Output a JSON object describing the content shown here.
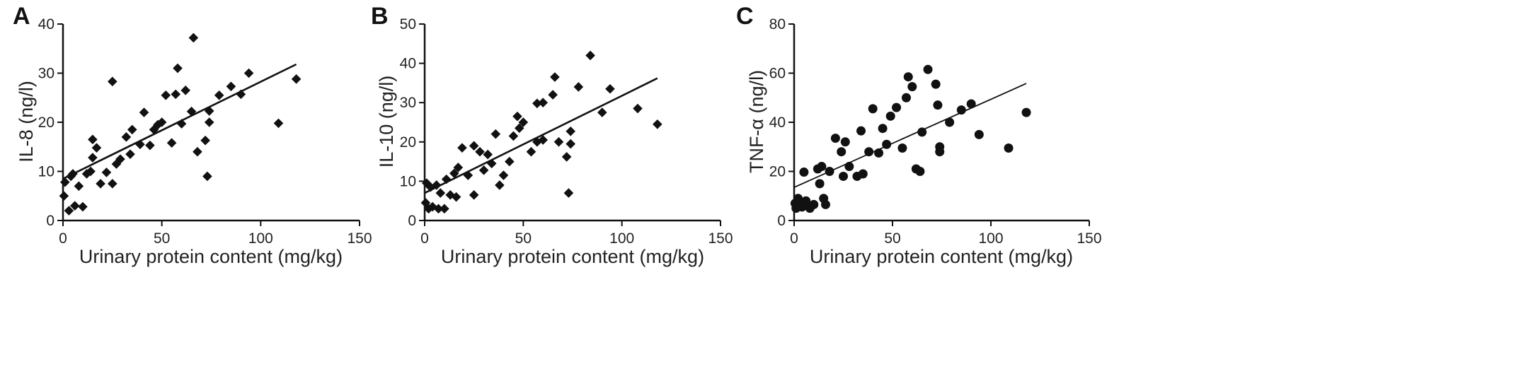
{
  "chart_data": [
    {
      "panel": "A",
      "type": "scatter",
      "xlabel": "Urinary protein content (mg/kg)",
      "ylabel": "IL-8 (ng/l)",
      "xlim": [
        0,
        150
      ],
      "ylim": [
        0,
        40
      ],
      "xticks": [
        0,
        50,
        100,
        150
      ],
      "yticks": [
        0,
        10,
        20,
        30,
        40
      ],
      "grid": false,
      "points": [
        {
          "x": 0.5,
          "y": 5.0
        },
        {
          "x": 1,
          "y": 7.8
        },
        {
          "x": 3,
          "y": 2.0
        },
        {
          "x": 4,
          "y": 9.0
        },
        {
          "x": 5,
          "y": 9.5
        },
        {
          "x": 6,
          "y": 3.0
        },
        {
          "x": 8,
          "y": 7.0
        },
        {
          "x": 10,
          "y": 2.8
        },
        {
          "x": 12,
          "y": 9.5
        },
        {
          "x": 14,
          "y": 10.0
        },
        {
          "x": 15,
          "y": 12.8
        },
        {
          "x": 15,
          "y": 16.5
        },
        {
          "x": 17,
          "y": 14.8
        },
        {
          "x": 19,
          "y": 7.5
        },
        {
          "x": 22,
          "y": 9.8
        },
        {
          "x": 25,
          "y": 7.5
        },
        {
          "x": 25,
          "y": 28.3
        },
        {
          "x": 27,
          "y": 11.5
        },
        {
          "x": 29,
          "y": 12.5
        },
        {
          "x": 32,
          "y": 17.0
        },
        {
          "x": 34,
          "y": 13.5
        },
        {
          "x": 35,
          "y": 18.5
        },
        {
          "x": 39,
          "y": 15.5
        },
        {
          "x": 41,
          "y": 22.0
        },
        {
          "x": 44,
          "y": 15.3
        },
        {
          "x": 46,
          "y": 18.5
        },
        {
          "x": 48,
          "y": 19.5
        },
        {
          "x": 50,
          "y": 20.0
        },
        {
          "x": 52,
          "y": 25.5
        },
        {
          "x": 55,
          "y": 15.8
        },
        {
          "x": 57,
          "y": 25.7
        },
        {
          "x": 58,
          "y": 31.0
        },
        {
          "x": 60,
          "y": 19.7
        },
        {
          "x": 62,
          "y": 26.5
        },
        {
          "x": 65,
          "y": 22.2
        },
        {
          "x": 66,
          "y": 37.2
        },
        {
          "x": 68,
          "y": 14.0
        },
        {
          "x": 72,
          "y": 16.3
        },
        {
          "x": 73,
          "y": 9.0
        },
        {
          "x": 74,
          "y": 20.0
        },
        {
          "x": 74,
          "y": 22.3
        },
        {
          "x": 79,
          "y": 25.5
        },
        {
          "x": 85,
          "y": 27.3
        },
        {
          "x": 90,
          "y": 25.7
        },
        {
          "x": 94,
          "y": 30.0
        },
        {
          "x": 109,
          "y": 19.8
        },
        {
          "x": 118,
          "y": 28.8
        }
      ],
      "trendline": {
        "x": [
          0,
          118
        ],
        "y": [
          8.5,
          31.8
        ]
      }
    },
    {
      "panel": "B",
      "type": "scatter",
      "xlabel": "Urinary protein content (mg/kg)",
      "ylabel": "IL-10 (ng/l)",
      "xlim": [
        0,
        150
      ],
      "ylim": [
        0,
        50
      ],
      "xticks": [
        0,
        50,
        100,
        150
      ],
      "yticks": [
        0,
        10,
        20,
        30,
        40,
        50
      ],
      "grid": false,
      "points": [
        {
          "x": 0.5,
          "y": 4.5
        },
        {
          "x": 1,
          "y": 9.5
        },
        {
          "x": 2,
          "y": 3.0
        },
        {
          "x": 3,
          "y": 8.5
        },
        {
          "x": 4,
          "y": 3.5
        },
        {
          "x": 6,
          "y": 9.0
        },
        {
          "x": 7,
          "y": 3.0
        },
        {
          "x": 8,
          "y": 7.0
        },
        {
          "x": 10,
          "y": 3.0
        },
        {
          "x": 11,
          "y": 10.5
        },
        {
          "x": 13,
          "y": 6.5
        },
        {
          "x": 15,
          "y": 12.0
        },
        {
          "x": 16,
          "y": 6.0
        },
        {
          "x": 17,
          "y": 13.5
        },
        {
          "x": 19,
          "y": 18.5
        },
        {
          "x": 22,
          "y": 11.5
        },
        {
          "x": 25,
          "y": 19.0
        },
        {
          "x": 25,
          "y": 6.5
        },
        {
          "x": 28,
          "y": 17.5
        },
        {
          "x": 30,
          "y": 12.8
        },
        {
          "x": 32,
          "y": 16.8
        },
        {
          "x": 34,
          "y": 14.5
        },
        {
          "x": 36,
          "y": 22.0
        },
        {
          "x": 38,
          "y": 9.0
        },
        {
          "x": 40,
          "y": 11.5
        },
        {
          "x": 43,
          "y": 15.0
        },
        {
          "x": 45,
          "y": 21.5
        },
        {
          "x": 47,
          "y": 26.5
        },
        {
          "x": 48,
          "y": 23.5
        },
        {
          "x": 50,
          "y": 25.0
        },
        {
          "x": 54,
          "y": 17.5
        },
        {
          "x": 57,
          "y": 29.8
        },
        {
          "x": 57,
          "y": 20.0
        },
        {
          "x": 60,
          "y": 30.0
        },
        {
          "x": 60,
          "y": 20.5
        },
        {
          "x": 65,
          "y": 32.0
        },
        {
          "x": 66,
          "y": 36.5
        },
        {
          "x": 68,
          "y": 20.0
        },
        {
          "x": 72,
          "y": 16.2
        },
        {
          "x": 73,
          "y": 7.0
        },
        {
          "x": 74,
          "y": 19.5
        },
        {
          "x": 74,
          "y": 22.7
        },
        {
          "x": 78,
          "y": 34.0
        },
        {
          "x": 84,
          "y": 42.0
        },
        {
          "x": 90,
          "y": 27.5
        },
        {
          "x": 94,
          "y": 33.5
        },
        {
          "x": 108,
          "y": 28.5
        },
        {
          "x": 118,
          "y": 24.5
        }
      ],
      "trendline": {
        "x": [
          0,
          118
        ],
        "y": [
          7.0,
          36.2
        ]
      }
    },
    {
      "panel": "C",
      "type": "scatter",
      "xlabel": "Urinary protein content (mg/kg)",
      "ylabel": "TNF-α (ng/l)",
      "xlim": [
        0,
        150
      ],
      "ylim": [
        0,
        80
      ],
      "xticks": [
        0,
        50,
        100,
        150
      ],
      "yticks": [
        0,
        20,
        40,
        60,
        80
      ],
      "grid": false,
      "points": [
        {
          "x": 0.5,
          "y": 7.0
        },
        {
          "x": 1,
          "y": 5.0
        },
        {
          "x": 2,
          "y": 9.0
        },
        {
          "x": 3,
          "y": 6.0
        },
        {
          "x": 4,
          "y": 5.5
        },
        {
          "x": 5,
          "y": 19.7
        },
        {
          "x": 6,
          "y": 8.0
        },
        {
          "x": 8,
          "y": 5.0
        },
        {
          "x": 10,
          "y": 6.5
        },
        {
          "x": 12,
          "y": 21.0
        },
        {
          "x": 13,
          "y": 15.0
        },
        {
          "x": 14,
          "y": 22.0
        },
        {
          "x": 15,
          "y": 9.0
        },
        {
          "x": 16,
          "y": 6.5
        },
        {
          "x": 18,
          "y": 20.0
        },
        {
          "x": 21,
          "y": 33.5
        },
        {
          "x": 24,
          "y": 28.0
        },
        {
          "x": 25,
          "y": 18.0
        },
        {
          "x": 26,
          "y": 32.0
        },
        {
          "x": 28,
          "y": 22.0
        },
        {
          "x": 32,
          "y": 18.0
        },
        {
          "x": 34,
          "y": 36.5
        },
        {
          "x": 35,
          "y": 19.0
        },
        {
          "x": 38,
          "y": 28.0
        },
        {
          "x": 40,
          "y": 45.5
        },
        {
          "x": 43,
          "y": 27.5
        },
        {
          "x": 45,
          "y": 37.5
        },
        {
          "x": 47,
          "y": 31.0
        },
        {
          "x": 49,
          "y": 42.5
        },
        {
          "x": 52,
          "y": 46.0
        },
        {
          "x": 55,
          "y": 29.5
        },
        {
          "x": 57,
          "y": 50.0
        },
        {
          "x": 58,
          "y": 58.5
        },
        {
          "x": 60,
          "y": 54.5
        },
        {
          "x": 62,
          "y": 21.0
        },
        {
          "x": 64,
          "y": 20.0
        },
        {
          "x": 65,
          "y": 36.0
        },
        {
          "x": 68,
          "y": 61.5
        },
        {
          "x": 72,
          "y": 55.5
        },
        {
          "x": 73,
          "y": 47.0
        },
        {
          "x": 74,
          "y": 28.0
        },
        {
          "x": 74,
          "y": 30.0
        },
        {
          "x": 79,
          "y": 40.0
        },
        {
          "x": 85,
          "y": 45.0
        },
        {
          "x": 90,
          "y": 47.5
        },
        {
          "x": 94,
          "y": 35.0
        },
        {
          "x": 109,
          "y": 29.5
        },
        {
          "x": 118,
          "y": 44.0
        }
      ],
      "trendline": {
        "x": [
          0,
          118
        ],
        "y": [
          13.5,
          55.8
        ]
      }
    }
  ]
}
